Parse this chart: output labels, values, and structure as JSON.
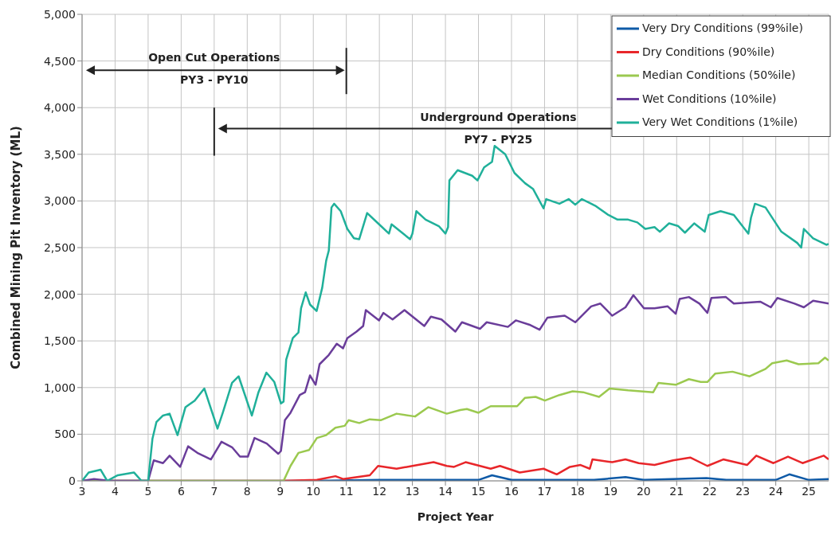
{
  "chart_data": {
    "type": "line",
    "xlabel": "Project Year",
    "ylabel": "Combined Mining Pit Inventory (ML)",
    "annotations": [
      "Open Cut Operations",
      "PY3 - PY10",
      "Underground Operations",
      "PY7 - PY25"
    ],
    "xlim": [
      3,
      25.6
    ],
    "xticks": [
      3,
      4,
      5,
      6,
      7,
      8,
      9,
      10,
      11,
      12,
      13,
      14,
      15,
      16,
      17,
      18,
      19,
      20,
      21,
      22,
      23,
      24,
      25
    ],
    "ylim": [
      0,
      5000
    ],
    "yticks": [
      0,
      500,
      {
        "value": 1000,
        "label": "1,000"
      },
      {
        "value": 1500,
        "label": "1,500"
      },
      {
        "value": 2000,
        "label": "2,000"
      },
      {
        "value": 2500,
        "label": "2,500"
      },
      {
        "value": 3000,
        "label": "3,000"
      },
      {
        "value": 3500,
        "label": "3,500"
      },
      {
        "value": 4000,
        "label": "4,000"
      },
      {
        "value": 4500,
        "label": "4,500"
      },
      {
        "value": 5000,
        "label": "5,000"
      }
    ],
    "grid": true,
    "legend": "top right",
    "marker": "none",
    "line_style": "solid",
    "series": [
      {
        "name": "Very Dry Conditions (99%ile)",
        "color": "#0e5aa7",
        "x": [
          3,
          9,
          10,
          12,
          15,
          15.41,
          16,
          18.5,
          19.45,
          20,
          21.9,
          22.5,
          24,
          24.41,
          25,
          25.6
        ],
        "values": [
          0,
          0,
          0,
          10,
          10,
          60,
          10,
          10,
          40,
          10,
          30,
          10,
          10,
          70,
          10,
          20
        ]
      },
      {
        "name": "Dry Conditions (90%ile)",
        "color": "#e8262a",
        "x": [
          3,
          9.02,
          10.11,
          10.67,
          10.9,
          11.71,
          11.96,
          12.52,
          13,
          13.64,
          14.04,
          14.26,
          14.61,
          15.37,
          15.65,
          16.25,
          16.97,
          17.37,
          17.77,
          18.09,
          18.37,
          18.45,
          19.05,
          19.45,
          19.85,
          20.33,
          20.89,
          21.41,
          21.93,
          22.41,
          23.13,
          23.41,
          23.93,
          24.37,
          24.81,
          25.45,
          25.6
        ],
        "values": [
          0,
          0,
          10,
          50,
          20,
          60,
          160,
          130,
          160,
          200,
          160,
          150,
          200,
          130,
          160,
          90,
          130,
          70,
          150,
          170,
          130,
          230,
          200,
          230,
          190,
          170,
          220,
          250,
          160,
          230,
          170,
          270,
          190,
          260,
          190,
          270,
          230
        ]
      },
      {
        "name": "Median Conditions (50%ile)",
        "color": "#9bc94f",
        "x": [
          3,
          9.1,
          9.31,
          9.55,
          9.87,
          10.11,
          10.39,
          10.67,
          10.95,
          11.07,
          11.39,
          11.71,
          12.04,
          12.52,
          13.08,
          13.48,
          14.04,
          14.45,
          14.65,
          15,
          15.37,
          15.85,
          16.17,
          16.41,
          16.73,
          17.01,
          17.45,
          17.85,
          18.17,
          18.65,
          18.97,
          19.53,
          20.29,
          20.45,
          20.97,
          21.37,
          21.73,
          21.93,
          22.17,
          22.69,
          23.21,
          23.69,
          23.89,
          24.33,
          24.69,
          25.29,
          25.49,
          25.6
        ],
        "values": [
          0,
          0,
          160,
          300,
          330,
          460,
          490,
          570,
          590,
          650,
          620,
          660,
          650,
          720,
          690,
          790,
          720,
          760,
          770,
          730,
          800,
          800,
          800,
          890,
          900,
          860,
          920,
          960,
          950,
          900,
          990,
          970,
          950,
          1050,
          1030,
          1090,
          1060,
          1060,
          1150,
          1170,
          1120,
          1200,
          1260,
          1290,
          1250,
          1260,
          1320,
          1290
        ]
      },
      {
        "name": "Wet Conditions (10%ile)",
        "color": "#6a3d9a",
        "x": [
          3,
          3.36,
          3.84,
          5,
          5.17,
          5.45,
          5.65,
          5.97,
          6.21,
          6.49,
          6.9,
          7.22,
          7.54,
          7.78,
          8.02,
          8.22,
          8.59,
          8.94,
          9.02,
          9.14,
          9.31,
          9.59,
          9.75,
          9.9,
          10.07,
          10.19,
          10.47,
          10.71,
          10.9,
          11.03,
          11.31,
          11.51,
          11.59,
          11.99,
          12.12,
          12.4,
          12.76,
          13.36,
          13.56,
          13.88,
          14.3,
          14.5,
          15.05,
          15.25,
          15.89,
          16.13,
          16.57,
          16.85,
          17.09,
          17.61,
          17.93,
          18.41,
          18.69,
          19.05,
          19.45,
          19.69,
          20.01,
          20.33,
          20.73,
          20.97,
          21.09,
          21.37,
          21.69,
          21.93,
          22.05,
          22.49,
          22.73,
          23.53,
          23.85,
          24.05,
          24.57,
          24.85,
          25.13,
          25.6
        ],
        "values": [
          0,
          20,
          0,
          0,
          220,
          190,
          270,
          150,
          370,
          300,
          230,
          420,
          360,
          260,
          260,
          460,
          400,
          290,
          320,
          650,
          730,
          920,
          950,
          1130,
          1030,
          1250,
          1350,
          1470,
          1420,
          1530,
          1600,
          1660,
          1830,
          1720,
          1800,
          1730,
          1830,
          1660,
          1760,
          1730,
          1600,
          1700,
          1630,
          1700,
          1650,
          1720,
          1670,
          1620,
          1750,
          1770,
          1700,
          1870,
          1900,
          1770,
          1860,
          1990,
          1850,
          1850,
          1870,
          1790,
          1950,
          1970,
          1900,
          1800,
          1960,
          1970,
          1900,
          1920,
          1860,
          1960,
          1900,
          1860,
          1930,
          1900
        ]
      },
      {
        "name": "Very Wet Conditions (1%ile)",
        "color": "#20b09a",
        "x": [
          3,
          3.2,
          3.56,
          3.76,
          4.08,
          4.57,
          4.8,
          5,
          5.13,
          5.25,
          5.45,
          5.65,
          5.89,
          6.13,
          6.41,
          6.7,
          7.1,
          7.26,
          7.54,
          7.74,
          8.14,
          8.34,
          8.58,
          8.82,
          9.02,
          9.1,
          9.18,
          9.38,
          9.55,
          9.63,
          9.77,
          9.9,
          10.1,
          10.27,
          10.39,
          10.47,
          10.55,
          10.63,
          10.83,
          11.03,
          11.23,
          11.39,
          11.63,
          11.96,
          12.29,
          12.37,
          12.93,
          13,
          13.12,
          13.4,
          13.8,
          14,
          14.08,
          14.12,
          14.37,
          14.81,
          14.97,
          15.17,
          15.41,
          15.49,
          15.81,
          16.09,
          16.41,
          16.65,
          16.97,
          17.05,
          17.45,
          17.73,
          17.93,
          18.13,
          18.53,
          18.93,
          19.21,
          19.53,
          19.81,
          20.05,
          20.33,
          20.49,
          20.77,
          21.05,
          21.25,
          21.53,
          21.85,
          21.97,
          22.33,
          22.73,
          23.17,
          23.25,
          23.37,
          23.69,
          24.17,
          24.65,
          24.77,
          24.85,
          25.13,
          25.53,
          25.6
        ],
        "values": [
          0,
          90,
          120,
          0,
          60,
          90,
          0,
          0,
          450,
          630,
          700,
          720,
          490,
          790,
          860,
          990,
          560,
          730,
          1050,
          1120,
          700,
          950,
          1160,
          1060,
          830,
          850,
          1300,
          1530,
          1590,
          1850,
          2020,
          1890,
          1820,
          2070,
          2360,
          2470,
          2930,
          2970,
          2890,
          2700,
          2600,
          2590,
          2870,
          2760,
          2650,
          2750,
          2590,
          2650,
          2890,
          2800,
          2730,
          2650,
          2720,
          3220,
          3330,
          3270,
          3220,
          3360,
          3420,
          3590,
          3500,
          3300,
          3190,
          3130,
          2920,
          3020,
          2970,
          3020,
          2960,
          3020,
          2950,
          2850,
          2800,
          2800,
          2770,
          2700,
          2720,
          2670,
          2760,
          2730,
          2660,
          2760,
          2670,
          2850,
          2890,
          2850,
          2650,
          2820,
          2970,
          2930,
          2670,
          2550,
          2500,
          2700,
          2600,
          2530,
          2540
        ]
      }
    ]
  }
}
